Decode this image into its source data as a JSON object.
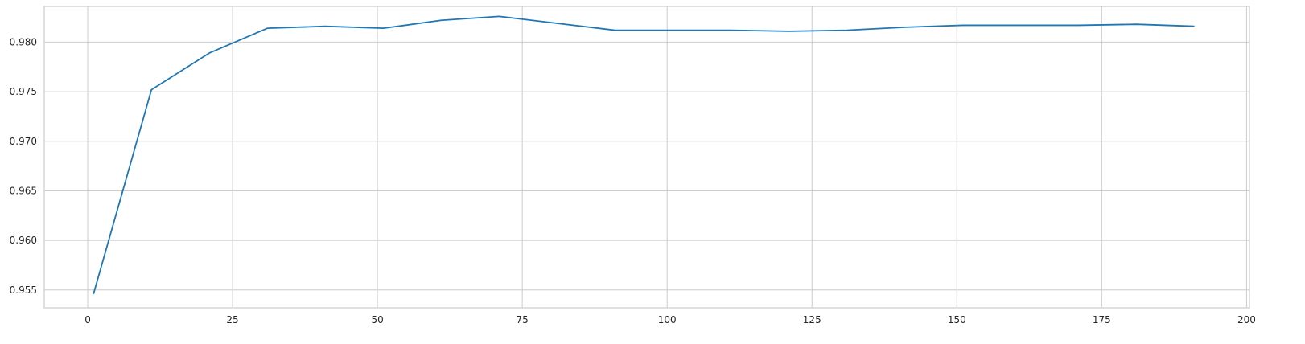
{
  "chart_data": {
    "type": "line",
    "title": "",
    "xlabel": "",
    "ylabel": "",
    "xlim": [
      -7.5,
      200.5
    ],
    "ylim": [
      0.9532,
      0.9836
    ],
    "xticks": [
      0,
      25,
      50,
      75,
      100,
      125,
      150,
      175,
      200
    ],
    "yticks": [
      0.955,
      0.96,
      0.965,
      0.97,
      0.975,
      0.98
    ],
    "xtick_labels": [
      "0",
      "25",
      "50",
      "75",
      "100",
      "125",
      "150",
      "175",
      "200"
    ],
    "ytick_labels": [
      "0.955",
      "0.960",
      "0.965",
      "0.970",
      "0.975",
      "0.980"
    ],
    "grid": true,
    "series": [
      {
        "color": "#1f77b4",
        "x": [
          1,
          11,
          21,
          31,
          41,
          51,
          61,
          71,
          81,
          91,
          101,
          111,
          121,
          131,
          141,
          151,
          161,
          171,
          181,
          191
        ],
        "y": [
          0.9546,
          0.9752,
          0.9789,
          0.9814,
          0.9816,
          0.9814,
          0.9822,
          0.9826,
          0.9819,
          0.9812,
          0.9812,
          0.9812,
          0.9811,
          0.9812,
          0.9815,
          0.9817,
          0.9817,
          0.9817,
          0.9818,
          0.9816
        ]
      }
    ]
  }
}
